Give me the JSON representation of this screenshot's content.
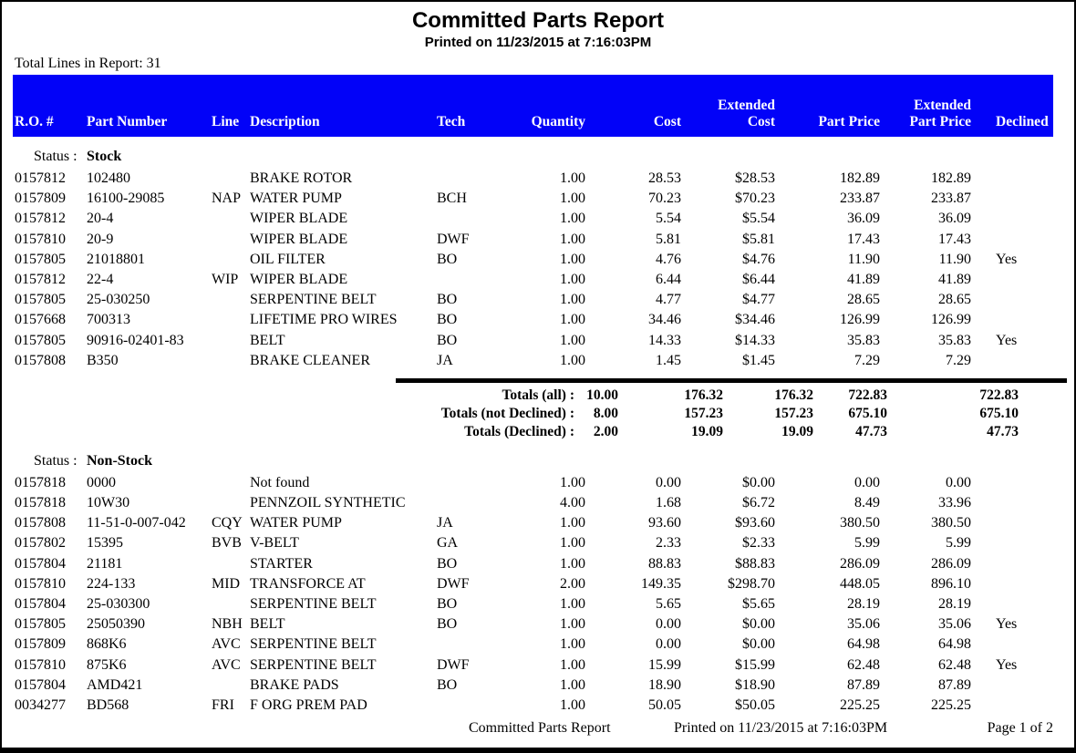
{
  "report": {
    "title": "Committed Parts Report",
    "printed_line": "Printed on 11/23/2015 at  7:16:03PM",
    "total_lines_label": "Total Lines in Report:",
    "total_lines_value": "31"
  },
  "colors": {
    "header_bar": "#0202F8",
    "header_text": "#FFFFFF"
  },
  "table": {
    "headers": [
      {
        "key": "ro",
        "top": "",
        "label": "R.O. #"
      },
      {
        "key": "part",
        "top": "",
        "label": "Part Number"
      },
      {
        "key": "line",
        "top": "",
        "label": "Line"
      },
      {
        "key": "desc",
        "top": "",
        "label": "Description"
      },
      {
        "key": "tech",
        "top": "",
        "label": "Tech"
      },
      {
        "key": "qty",
        "top": "",
        "label": "Quantity"
      },
      {
        "key": "cost",
        "top": "",
        "label": "Cost"
      },
      {
        "key": "ext_cost",
        "top": "Extended",
        "label": "Cost"
      },
      {
        "key": "price",
        "top": "",
        "label": "Part Price"
      },
      {
        "key": "ext_price",
        "top": "Extended",
        "label": "Part Price"
      },
      {
        "key": "declined",
        "top": "",
        "label": "Declined"
      }
    ]
  },
  "sections": [
    {
      "status_label": "Status :",
      "status_value": "Stock",
      "rows": [
        {
          "ro": "0157812",
          "part": "102480",
          "line": "",
          "desc": "BRAKE ROTOR",
          "tech": "",
          "qty": "1.00",
          "cost": "28.53",
          "ext_cost": "$28.53",
          "price": "182.89",
          "ext_price": "182.89",
          "declined": ""
        },
        {
          "ro": "0157809",
          "part": "16100-29085",
          "line": "NAP",
          "desc": "WATER PUMP",
          "tech": "BCH",
          "qty": "1.00",
          "cost": "70.23",
          "ext_cost": "$70.23",
          "price": "233.87",
          "ext_price": "233.87",
          "declined": ""
        },
        {
          "ro": "0157812",
          "part": "20-4",
          "line": "",
          "desc": "WIPER BLADE",
          "tech": "",
          "qty": "1.00",
          "cost": "5.54",
          "ext_cost": "$5.54",
          "price": "36.09",
          "ext_price": "36.09",
          "declined": ""
        },
        {
          "ro": "0157810",
          "part": "20-9",
          "line": "",
          "desc": "WIPER BLADE",
          "tech": "DWF",
          "qty": "1.00",
          "cost": "5.81",
          "ext_cost": "$5.81",
          "price": "17.43",
          "ext_price": "17.43",
          "declined": ""
        },
        {
          "ro": "0157805",
          "part": "21018801",
          "line": "",
          "desc": "OIL FILTER",
          "tech": "BO",
          "qty": "1.00",
          "cost": "4.76",
          "ext_cost": "$4.76",
          "price": "11.90",
          "ext_price": "11.90",
          "declined": "Yes"
        },
        {
          "ro": "0157812",
          "part": "22-4",
          "line": "WIP",
          "desc": "WIPER BLADE",
          "tech": "",
          "qty": "1.00",
          "cost": "6.44",
          "ext_cost": "$6.44",
          "price": "41.89",
          "ext_price": "41.89",
          "declined": ""
        },
        {
          "ro": "0157805",
          "part": "25-030250",
          "line": "",
          "desc": "SERPENTINE BELT",
          "tech": "BO",
          "qty": "1.00",
          "cost": "4.77",
          "ext_cost": "$4.77",
          "price": "28.65",
          "ext_price": "28.65",
          "declined": ""
        },
        {
          "ro": "0157668",
          "part": "700313",
          "line": "",
          "desc": "LIFETIME PRO WIRES",
          "tech": "BO",
          "qty": "1.00",
          "cost": "34.46",
          "ext_cost": "$34.46",
          "price": "126.99",
          "ext_price": "126.99",
          "declined": ""
        },
        {
          "ro": "0157805",
          "part": "90916-02401-83",
          "line": "",
          "desc": "BELT",
          "tech": "BO",
          "qty": "1.00",
          "cost": "14.33",
          "ext_cost": "$14.33",
          "price": "35.83",
          "ext_price": "35.83",
          "declined": "Yes"
        },
        {
          "ro": "0157808",
          "part": "B350",
          "line": "",
          "desc": "BRAKE CLEANER",
          "tech": "JA",
          "qty": "1.00",
          "cost": "1.45",
          "ext_cost": "$1.45",
          "price": "7.29",
          "ext_price": "7.29",
          "declined": ""
        }
      ]
    },
    {
      "status_label": "Status :",
      "status_value": "Non-Stock",
      "rows": [
        {
          "ro": "0157818",
          "part": "0000",
          "line": "",
          "desc": "Not found",
          "tech": "",
          "qty": "1.00",
          "cost": "0.00",
          "ext_cost": "$0.00",
          "price": "0.00",
          "ext_price": "0.00",
          "declined": ""
        },
        {
          "ro": "0157818",
          "part": "10W30",
          "line": "",
          "desc": "PENNZOIL SYNTHETIC",
          "tech": "",
          "qty": "4.00",
          "cost": "1.68",
          "ext_cost": "$6.72",
          "price": "8.49",
          "ext_price": "33.96",
          "declined": ""
        },
        {
          "ro": "0157808",
          "part": "11-51-0-007-042",
          "line": "CQY",
          "desc": "WATER PUMP",
          "tech": "JA",
          "qty": "1.00",
          "cost": "93.60",
          "ext_cost": "$93.60",
          "price": "380.50",
          "ext_price": "380.50",
          "declined": ""
        },
        {
          "ro": "0157802",
          "part": "15395",
          "line": "BVB",
          "desc": "V-BELT",
          "tech": "GA",
          "qty": "1.00",
          "cost": "2.33",
          "ext_cost": "$2.33",
          "price": "5.99",
          "ext_price": "5.99",
          "declined": ""
        },
        {
          "ro": "0157804",
          "part": "21181",
          "line": "",
          "desc": "STARTER",
          "tech": "BO",
          "qty": "1.00",
          "cost": "88.83",
          "ext_cost": "$88.83",
          "price": "286.09",
          "ext_price": "286.09",
          "declined": ""
        },
        {
          "ro": "0157810",
          "part": "224-133",
          "line": "MID",
          "desc": "TRANSFORCE AT",
          "tech": "DWF",
          "qty": "2.00",
          "cost": "149.35",
          "ext_cost": "$298.70",
          "price": "448.05",
          "ext_price": "896.10",
          "declined": ""
        },
        {
          "ro": "0157804",
          "part": "25-030300",
          "line": "",
          "desc": "SERPENTINE BELT",
          "tech": "BO",
          "qty": "1.00",
          "cost": "5.65",
          "ext_cost": "$5.65",
          "price": "28.19",
          "ext_price": "28.19",
          "declined": ""
        },
        {
          "ro": "0157805",
          "part": "25050390",
          "line": "NBH",
          "desc": "BELT",
          "tech": "BO",
          "qty": "1.00",
          "cost": "0.00",
          "ext_cost": "$0.00",
          "price": "35.06",
          "ext_price": "35.06",
          "declined": "Yes"
        },
        {
          "ro": "0157809",
          "part": "868K6",
          "line": "AVC",
          "desc": "SERPENTINE BELT",
          "tech": "",
          "qty": "1.00",
          "cost": "0.00",
          "ext_cost": "$0.00",
          "price": "64.98",
          "ext_price": "64.98",
          "declined": ""
        },
        {
          "ro": "0157810",
          "part": "875K6",
          "line": "AVC",
          "desc": "SERPENTINE BELT",
          "tech": "DWF",
          "qty": "1.00",
          "cost": "15.99",
          "ext_cost": "$15.99",
          "price": "62.48",
          "ext_price": "62.48",
          "declined": "Yes"
        },
        {
          "ro": "0157804",
          "part": "AMD421",
          "line": "",
          "desc": "BRAKE PADS",
          "tech": "BO",
          "qty": "1.00",
          "cost": "18.90",
          "ext_cost": "$18.90",
          "price": "87.89",
          "ext_price": "87.89",
          "declined": ""
        },
        {
          "ro": "0034277",
          "part": "BD568",
          "line": "FRI",
          "desc": "F ORG PREM PAD",
          "tech": "",
          "qty": "1.00",
          "cost": "50.05",
          "ext_cost": "$50.05",
          "price": "225.25",
          "ext_price": "225.25",
          "declined": ""
        }
      ]
    }
  ],
  "totals": {
    "rows": [
      {
        "label": "Totals (all) :",
        "values": [
          "10.00",
          "176.32",
          "176.32",
          "722.83",
          "722.83"
        ]
      },
      {
        "label": "Totals (not Declined) :",
        "values": [
          "8.00",
          "157.23",
          "157.23",
          "675.10",
          "675.10"
        ]
      },
      {
        "label": "Totals (Declined) :",
        "values": [
          "2.00",
          "19.09",
          "19.09",
          "47.73",
          "47.73"
        ]
      }
    ]
  },
  "footer": {
    "report_title": "Committed Parts Report",
    "printed": "Printed on 11/23/2015 at  7:16:03PM",
    "page": "Page 1 of 2"
  }
}
